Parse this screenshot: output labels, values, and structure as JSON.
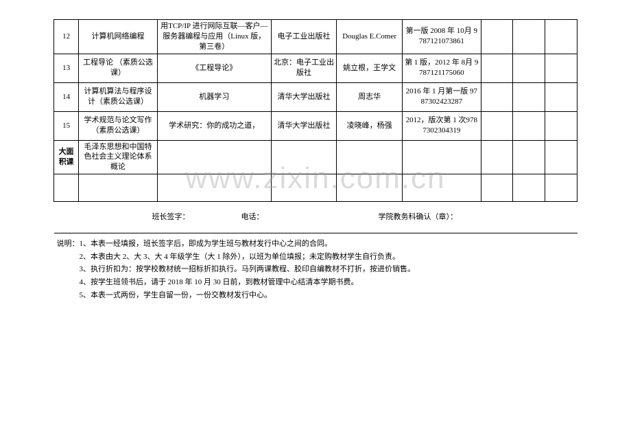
{
  "watermark": "www.zixin.com.cn",
  "rows": [
    {
      "num": "12",
      "course": "计算机网络编程",
      "book": "用TCP/IP 进行网际互联—客户—服务器编程与应用（Linux 版，第三卷）",
      "publisher": "电子工业出版社",
      "author": "Douglas E.Comer",
      "edition": "第一版 2008 年 10月 9787121073861"
    },
    {
      "num": "13",
      "course": "工程导论\n（素质公选课）",
      "book": "《工程导论》",
      "publisher": "北京：电子工业出版社",
      "author": "姚立根，王学文",
      "edition": "第 1 版，2012 年 8月 9787121175060"
    },
    {
      "num": "14",
      "course": "计算机算法与程序设计（素质公选课）",
      "book": "机器学习",
      "publisher": "清华大学出版社",
      "author": "周志华",
      "edition": "2016 年 1 月第一版 9787302423287"
    },
    {
      "num": "15",
      "course": "学术规范与论文写作（素质公选课）",
      "book": "学术研究：你的成功之道，",
      "publisher": "清华大学出版社",
      "author": "凌晓峰，杨强",
      "edition": "2012，版次第 1 次9787302304319"
    },
    {
      "num": "大面积课",
      "course": "毛泽东思想和中国特色社会主义理论体系概论",
      "book": "",
      "publisher": "",
      "author": "",
      "edition": ""
    }
  ],
  "sig": {
    "a": "班长签字：",
    "b": "电话：",
    "c": "学院教务科确认（章）："
  },
  "notes": {
    "label": "说明：",
    "lines": [
      "1、本表一经填报，班长签字后，即成为学生班与教材发行中心之间的合同。",
      "2、本表由大 2、大 3、大 4 年级学生（大 1 除外），以班为单位填报；未定购教材学生自行负责。",
      "3、执行折扣为：按学校教材统一招标折扣执行。马列两课教程、胶印自编教材不打折，按进价销售。",
      "4、按学生班领书后，请于 2018 年 10 月 30 日前，到教材管理中心结清本学期书费。",
      "5、本表一式两份，学生自留一份，一份交教材发行中心。"
    ]
  }
}
